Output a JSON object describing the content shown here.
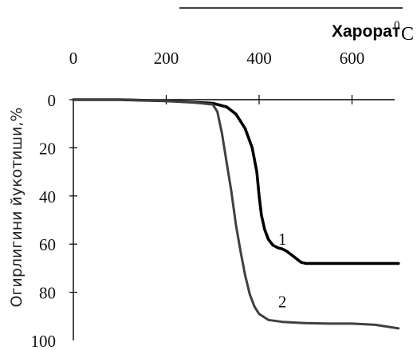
{
  "chart_data": {
    "type": "line",
    "title": "Харорат",
    "title_unit_sup": "0",
    "title_unit": "C",
    "ylabel": "Огирлигини йукотиши,%",
    "xlim": [
      0,
      700
    ],
    "ylim": [
      0,
      100
    ],
    "y_inverted": true,
    "x_axis_position": "top",
    "xticks": [
      0,
      200,
      400,
      600
    ],
    "yticks": [
      0,
      20,
      40,
      60,
      80,
      100
    ],
    "grid": false,
    "series": [
      {
        "name": "1",
        "color": "#000000",
        "x": [
          0,
          100,
          200,
          250,
          300,
          330,
          350,
          370,
          385,
          395,
          400,
          405,
          412,
          420,
          430,
          440,
          450,
          460,
          470,
          480,
          490,
          500,
          550,
          600,
          650,
          700
        ],
        "y": [
          0,
          0,
          0.5,
          1,
          1.5,
          3,
          6,
          12,
          20,
          30,
          40,
          48,
          54,
          58,
          60.5,
          61.5,
          62,
          63,
          64.5,
          66,
          67.5,
          68,
          68,
          68,
          68,
          68
        ]
      },
      {
        "name": "2",
        "color": "#404040",
        "x": [
          0,
          100,
          200,
          250,
          300,
          310,
          320,
          330,
          340,
          350,
          360,
          370,
          380,
          390,
          400,
          420,
          450,
          500,
          550,
          600,
          650,
          700
        ],
        "y": [
          0,
          0,
          0.5,
          1,
          2,
          5,
          14,
          26,
          38,
          52,
          63,
          73,
          81,
          86,
          89,
          91.5,
          92.3,
          92.8,
          93,
          93,
          93.5,
          95
        ]
      }
    ]
  }
}
